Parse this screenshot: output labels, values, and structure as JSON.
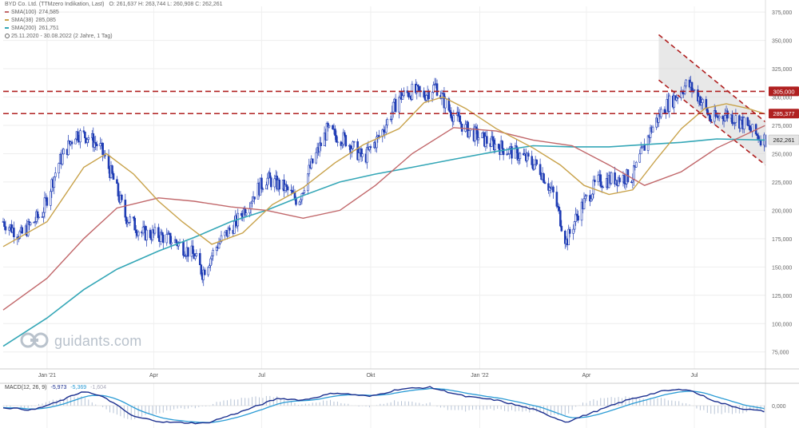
{
  "header": {
    "title": "BYD Co. Ltd. (TTMzero Indikation, Last)",
    "ohlc": "O: 261,637  H: 263,744  L: 260,908  C: 262,261",
    "sma100_label": "SMA(100)",
    "sma100_value": "274,585",
    "sma38_label": "SMA(38)",
    "sma38_value": "285,085",
    "sma200_label": "SMA(200)",
    "sma200_value": "261,751",
    "range": "25.11.2020 - 30.08.2022  (2 Jahre, 1 Tag)"
  },
  "watermark": "guidants.com",
  "macd_legend": {
    "label": "MACD(12, 26, 9)",
    "v1": "-5,973",
    "v2": "-5,369",
    "v3": "-1,604"
  },
  "colors": {
    "up": "#1f3cb4",
    "sma38": "#c8a24a",
    "sma100": "#c1676a",
    "sma200": "#35a7b7",
    "level": "#b02020",
    "channel": "#b02020",
    "macd": "#1b2f8f",
    "signal": "#2a9bd5",
    "hist": "#b8c4d6"
  },
  "chart_data": {
    "type": "candlestick",
    "y_axis": {
      "min": 60,
      "max": 380,
      "ticks": [
        75,
        100,
        125,
        150,
        175,
        200,
        225,
        250,
        275,
        300,
        325,
        350,
        375
      ],
      "tick_labels": [
        "75,000",
        "100,000",
        "125,000",
        "150,000",
        "175,000",
        "200,000",
        "225,000",
        "250,000",
        "275,000",
        "300,000",
        "325,000",
        "350,000",
        "375,000"
      ]
    },
    "x_axis": {
      "start": "2020-11-25",
      "end": "2022-08-30",
      "ticks": [
        {
          "label": "Jan '21",
          "date": "2021-01-01"
        },
        {
          "label": "Apr",
          "date": "2021-04-01"
        },
        {
          "label": "Jul",
          "date": "2021-07-01"
        },
        {
          "label": "Okt",
          "date": "2021-10-01"
        },
        {
          "label": "Jan '22",
          "date": "2022-01-01"
        },
        {
          "label": "Apr",
          "date": "2022-04-01"
        },
        {
          "label": "Jul",
          "date": "2022-07-01"
        }
      ]
    },
    "price_path": [
      [
        "2020-11-25",
        190
      ],
      [
        "2020-12-10",
        178
      ],
      [
        "2020-12-28",
        198
      ],
      [
        "2021-01-10",
        240
      ],
      [
        "2021-01-25",
        268
      ],
      [
        "2021-02-05",
        265
      ],
      [
        "2021-02-15",
        255
      ],
      [
        "2021-02-25",
        230
      ],
      [
        "2021-03-08",
        195
      ],
      [
        "2021-03-22",
        180
      ],
      [
        "2021-04-05",
        178
      ],
      [
        "2021-04-20",
        172
      ],
      [
        "2021-05-05",
        160
      ],
      [
        "2021-05-12",
        145
      ],
      [
        "2021-05-25",
        170
      ],
      [
        "2021-06-10",
        190
      ],
      [
        "2021-06-25",
        215
      ],
      [
        "2021-07-05",
        228
      ],
      [
        "2021-07-20",
        220
      ],
      [
        "2021-08-01",
        208
      ],
      [
        "2021-08-10",
        235
      ],
      [
        "2021-08-25",
        270
      ],
      [
        "2021-09-10",
        262
      ],
      [
        "2021-09-25",
        245
      ],
      [
        "2021-10-10",
        268
      ],
      [
        "2021-10-25",
        300
      ],
      [
        "2021-11-05",
        305
      ],
      [
        "2021-11-15",
        302
      ],
      [
        "2021-11-25",
        310
      ],
      [
        "2021-12-05",
        290
      ],
      [
        "2021-12-20",
        272
      ],
      [
        "2022-01-05",
        262
      ],
      [
        "2022-01-20",
        255
      ],
      [
        "2022-02-05",
        248
      ],
      [
        "2022-02-20",
        238
      ],
      [
        "2022-03-05",
        212
      ],
      [
        "2022-03-15",
        172
      ],
      [
        "2022-03-25",
        198
      ],
      [
        "2022-04-10",
        225
      ],
      [
        "2022-04-25",
        228
      ],
      [
        "2022-05-10",
        230
      ],
      [
        "2022-05-25",
        270
      ],
      [
        "2022-06-05",
        290
      ],
      [
        "2022-06-15",
        300
      ],
      [
        "2022-06-25",
        312
      ],
      [
        "2022-07-05",
        300
      ],
      [
        "2022-07-15",
        280
      ],
      [
        "2022-07-28",
        285
      ],
      [
        "2022-08-10",
        278
      ],
      [
        "2022-08-20",
        268
      ],
      [
        "2022-08-30",
        262
      ]
    ],
    "sma38": [
      [
        "2020-11-25",
        168
      ],
      [
        "2021-01-01",
        190
      ],
      [
        "2021-02-01",
        238
      ],
      [
        "2021-02-20",
        250
      ],
      [
        "2021-03-15",
        232
      ],
      [
        "2021-04-05",
        208
      ],
      [
        "2021-04-25",
        190
      ],
      [
        "2021-05-20",
        170
      ],
      [
        "2021-06-15",
        180
      ],
      [
        "2021-07-10",
        205
      ],
      [
        "2021-08-05",
        220
      ],
      [
        "2021-09-01",
        242
      ],
      [
        "2021-09-25",
        258
      ],
      [
        "2021-10-25",
        272
      ],
      [
        "2021-11-15",
        295
      ],
      [
        "2021-12-01",
        300
      ],
      [
        "2021-12-20",
        290
      ],
      [
        "2022-01-15",
        272
      ],
      [
        "2022-02-15",
        255
      ],
      [
        "2022-03-10",
        240
      ],
      [
        "2022-03-30",
        222
      ],
      [
        "2022-04-20",
        214
      ],
      [
        "2022-05-10",
        218
      ],
      [
        "2022-05-30",
        245
      ],
      [
        "2022-06-20",
        272
      ],
      [
        "2022-07-10",
        290
      ],
      [
        "2022-07-28",
        294
      ],
      [
        "2022-08-15",
        290
      ],
      [
        "2022-08-30",
        285
      ]
    ],
    "sma100": [
      [
        "2020-11-25",
        112
      ],
      [
        "2021-01-01",
        140
      ],
      [
        "2021-02-01",
        175
      ],
      [
        "2021-03-01",
        202
      ],
      [
        "2021-04-05",
        211
      ],
      [
        "2021-05-05",
        208
      ],
      [
        "2021-06-05",
        203
      ],
      [
        "2021-07-05",
        200
      ],
      [
        "2021-08-05",
        193
      ],
      [
        "2021-09-05",
        200
      ],
      [
        "2021-10-05",
        222
      ],
      [
        "2021-11-05",
        250
      ],
      [
        "2021-12-10",
        273
      ],
      [
        "2022-01-15",
        270
      ],
      [
        "2022-02-15",
        262
      ],
      [
        "2022-03-20",
        257
      ],
      [
        "2022-04-20",
        240
      ],
      [
        "2022-05-20",
        222
      ],
      [
        "2022-06-20",
        234
      ],
      [
        "2022-07-20",
        255
      ],
      [
        "2022-08-30",
        275
      ]
    ],
    "sma200": [
      [
        "2020-11-25",
        80
      ],
      [
        "2021-01-01",
        105
      ],
      [
        "2021-02-01",
        130
      ],
      [
        "2021-03-01",
        148
      ],
      [
        "2021-04-05",
        164
      ],
      [
        "2021-05-05",
        176
      ],
      [
        "2021-06-05",
        190
      ],
      [
        "2021-07-05",
        200
      ],
      [
        "2021-08-05",
        213
      ],
      [
        "2021-09-05",
        225
      ],
      [
        "2021-10-05",
        232
      ],
      [
        "2021-11-05",
        238
      ],
      [
        "2021-12-10",
        245
      ],
      [
        "2022-01-15",
        252
      ],
      [
        "2022-02-15",
        257
      ],
      [
        "2022-03-20",
        256
      ],
      [
        "2022-04-20",
        256
      ],
      [
        "2022-05-20",
        258
      ],
      [
        "2022-06-20",
        260
      ],
      [
        "2022-07-20",
        263
      ],
      [
        "2022-08-30",
        262
      ]
    ],
    "levels": [
      {
        "value": 305,
        "label": "305,000"
      },
      {
        "value": 285.377,
        "label": "285,377"
      }
    ],
    "last_price": {
      "value": 262.261,
      "label": "262,261"
    },
    "channel": {
      "upper": [
        [
          "2022-06-01",
          355
        ],
        [
          "2022-08-30",
          278
        ]
      ],
      "lower": [
        [
          "2022-06-01",
          315
        ],
        [
          "2022-08-30",
          240
        ]
      ]
    },
    "macd_panel": {
      "ticks": [
        {
          "value": 0,
          "label": "0,000"
        }
      ],
      "macd_path": [
        [
          "2020-11-25",
          -0.5
        ],
        [
          "2020-12-20",
          -1.2
        ],
        [
          "2021-01-10",
          1.0
        ],
        [
          "2021-02-01",
          4.0
        ],
        [
          "2021-02-20",
          2.0
        ],
        [
          "2021-03-15",
          -3.0
        ],
        [
          "2021-04-10",
          -4.5
        ],
        [
          "2021-05-15",
          -4.8
        ],
        [
          "2021-06-15",
          -1.5
        ],
        [
          "2021-07-15",
          2.0
        ],
        [
          "2021-08-05",
          1.5
        ],
        [
          "2021-09-01",
          3.5
        ],
        [
          "2021-10-01",
          2.5
        ],
        [
          "2021-10-25",
          4.5
        ],
        [
          "2021-11-20",
          5.0
        ],
        [
          "2021-12-20",
          2.5
        ],
        [
          "2022-01-15",
          1.5
        ],
        [
          "2022-02-15",
          -1.0
        ],
        [
          "2022-03-15",
          -4.5
        ],
        [
          "2022-04-05",
          -2.0
        ],
        [
          "2022-05-05",
          1.5
        ],
        [
          "2022-06-05",
          4.0
        ],
        [
          "2022-06-25",
          4.5
        ],
        [
          "2022-07-20",
          1.0
        ],
        [
          "2022-08-10",
          -0.8
        ],
        [
          "2022-08-30",
          -1.6
        ]
      ]
    }
  }
}
